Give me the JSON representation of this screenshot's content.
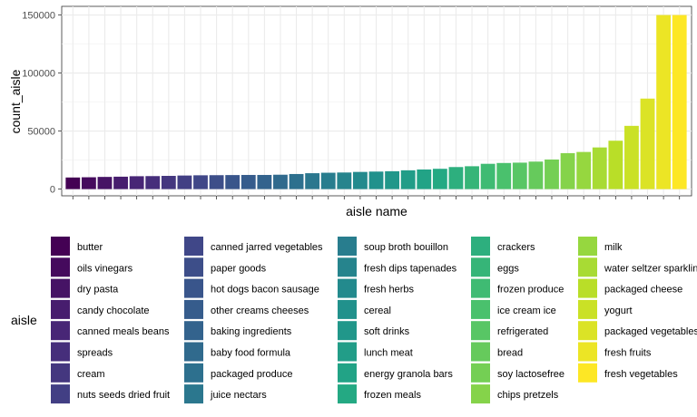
{
  "chart_data": {
    "type": "bar",
    "xlabel": "aisle name",
    "ylabel": "count_aisle",
    "ylim": [
      0,
      155000
    ],
    "yticks": [
      0,
      50000,
      100000,
      150000
    ],
    "ytick_labels": [
      "0",
      "50000",
      "100000",
      "150000"
    ],
    "grid": true,
    "x_tick_labels_shown": false,
    "legend_title": "aisle",
    "legend_placement": "bottom",
    "color_scale": "viridis",
    "series": [
      {
        "values": [
          10000,
          10200,
          10500,
          10700,
          11100,
          11200,
          11400,
          11700,
          11900,
          12000,
          12100,
          12200,
          12200,
          12400,
          13000,
          13700,
          14100,
          14300,
          14800,
          15100,
          15400,
          16200,
          16900,
          17500,
          19000,
          19700,
          21800,
          22500,
          22800,
          23700,
          25500,
          31000,
          32000,
          35900,
          41700,
          54500,
          78000,
          150000,
          150000
        ]
      }
    ],
    "categories": [
      "butter",
      "oils vinegars",
      "dry pasta",
      "candy chocolate",
      "canned meals beans",
      "spreads",
      "cream",
      "nuts seeds dried fruit",
      "canned jarred vegetables",
      "paper goods",
      "hot dogs bacon sausage",
      "other creams cheeses",
      "baking ingredients",
      "baby food formula",
      "packaged produce",
      "juice nectars",
      "soup broth bouillon",
      "fresh dips tapenades",
      "fresh herbs",
      "cereal",
      "soft drinks",
      "lunch meat",
      "energy granola bars",
      "frozen meals",
      "crackers",
      "eggs",
      "frozen produce",
      "ice cream ice",
      "refrigerated",
      "bread",
      "soy lactosefree",
      "chips pretzels",
      "milk",
      "water seltzer sparkling water",
      "packaged cheese",
      "yogurt",
      "packaged vegetables fruits",
      "fresh fruits",
      "fresh vegetables"
    ]
  }
}
